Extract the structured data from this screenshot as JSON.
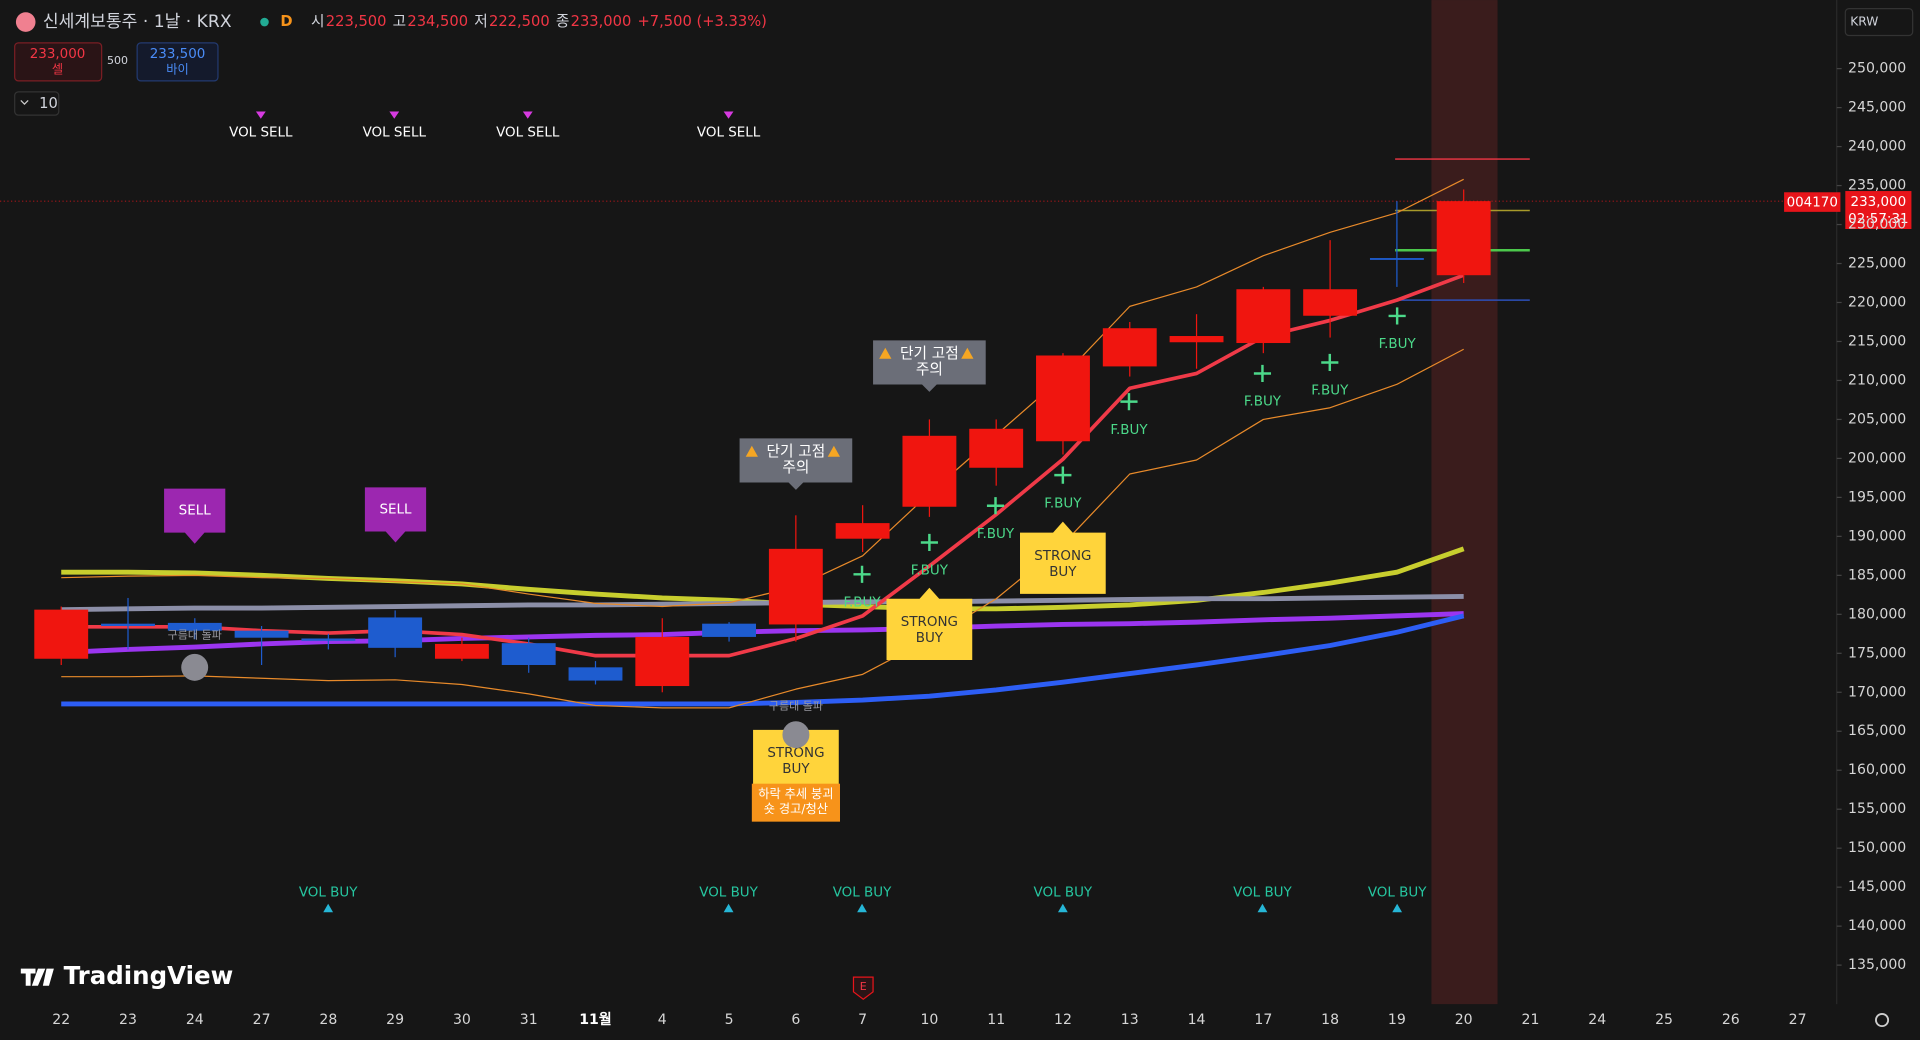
{
  "header": {
    "symbol": "신세계보통주 · 1날 · KRX",
    "interval": "D",
    "ohlc": [
      {
        "label": "시",
        "value": "223,500"
      },
      {
        "label": "고",
        "value": "234,500"
      },
      {
        "label": "저",
        "value": "222,500"
      },
      {
        "label": "종",
        "value": "233,000"
      }
    ],
    "change": "+7,500 (+3.33%)",
    "sell_price": "233,000",
    "sell_label": "셀",
    "spread": "500",
    "buy_price": "233,500",
    "buy_label": "바이",
    "indicator_count": "10",
    "currency": "KRW",
    "ticker": "004170",
    "last_price": "233,000",
    "countdown": "02:57:31",
    "brand": "TradingView",
    "event": "E"
  },
  "annotations": {
    "vol_sell": [
      "VOL SELL",
      "VOL SELL",
      "VOL SELL",
      "VOL SELL"
    ],
    "vol_buy": [
      "VOL BUY",
      "VOL BUY",
      "VOL BUY",
      "VOL BUY",
      "VOL BUY",
      "VOL BUY"
    ],
    "sell": [
      "SELL",
      "SELL"
    ],
    "warning": [
      [
        "단기 고점",
        "주의"
      ],
      [
        "단기 고점",
        "주의"
      ]
    ],
    "strong_buy": [
      [
        "STRONG",
        "BUY"
      ],
      [
        "STRONG",
        "BUY"
      ],
      [
        "STRONG",
        "BUY"
      ]
    ],
    "exit": [
      "하락 추세 붕괴",
      "숏 경고/청산"
    ],
    "f_buy": [
      "F.BUY",
      "F.BUY",
      "F.BUY",
      "F.BUY",
      "F.BUY",
      "F.BUY",
      "F.BUY",
      "F.BUY"
    ],
    "cloud": [
      "구름대 돌파",
      "구름대 돌파"
    ]
  },
  "chart_data": {
    "type": "candlestick",
    "categories": [
      "22",
      "23",
      "24",
      "27",
      "28",
      "29",
      "30",
      "31",
      "11월",
      "4",
      "5",
      "6",
      "7",
      "10",
      "11",
      "12",
      "13",
      "14",
      "17",
      "18",
      "19",
      "20",
      "21",
      "24",
      "25",
      "26",
      "27"
    ],
    "open": [
      174300,
      178800,
      178900,
      177900,
      176900,
      179600,
      174300,
      176300,
      173200,
      170800,
      178800,
      178700,
      189700,
      193800,
      198800,
      202200,
      211800,
      214900,
      214800,
      218300,
      225700,
      223500,
      null,
      null,
      null,
      null,
      null
    ],
    "high": [
      181000,
      182100,
      179500,
      178500,
      177500,
      180500,
      177000,
      177000,
      174000,
      179500,
      179000,
      192700,
      194000,
      205000,
      205000,
      213500,
      217500,
      218500,
      222000,
      228000,
      233000,
      234500,
      null,
      null,
      null,
      null,
      null
    ],
    "low": [
      173500,
      175500,
      176800,
      173500,
      175500,
      174500,
      174000,
      172500,
      171000,
      170000,
      176500,
      176500,
      188000,
      192500,
      196500,
      200500,
      210500,
      211500,
      213500,
      215500,
      222000,
      222500,
      null,
      null,
      null,
      null,
      null
    ],
    "close": [
      180600,
      178500,
      177900,
      177000,
      176600,
      175700,
      176200,
      173500,
      171500,
      177100,
      177100,
      188400,
      191700,
      202900,
      203800,
      213200,
      216700,
      215700,
      221700,
      221700,
      225500,
      233000,
      null,
      null,
      null,
      null,
      null
    ],
    "up_color": "#f0150f",
    "down_color": "#1e5ccf",
    "series": [
      {
        "color": "#c8ce2e",
        "width": 4,
        "values": [
          185400,
          185400,
          185300,
          185000,
          184600,
          184300,
          183900,
          183200,
          182600,
          182100,
          181800,
          181300,
          181000,
          180700,
          180700,
          180900,
          181200,
          181800,
          182800,
          184000,
          185400,
          188400,
          null,
          null,
          null,
          null,
          null
        ]
      },
      {
        "color": "#8c8fa8",
        "width": 4,
        "values": [
          180600,
          180700,
          180800,
          180800,
          180900,
          181000,
          181100,
          181200,
          181200,
          181300,
          181400,
          181500,
          181600,
          181600,
          181700,
          181800,
          181900,
          182000,
          182000,
          182100,
          182200,
          182300,
          null,
          null,
          null,
          null,
          null
        ]
      },
      {
        "color": "#9b35f0",
        "width": 4,
        "values": [
          175100,
          175500,
          175800,
          176200,
          176500,
          176600,
          176900,
          177100,
          177300,
          177400,
          177700,
          177900,
          178000,
          178200,
          178500,
          178700,
          178800,
          179000,
          179300,
          179500,
          179800,
          180100,
          null,
          null,
          null,
          null,
          null
        ]
      },
      {
        "color": "#2d5ef5",
        "width": 4,
        "values": [
          168500,
          168500,
          168500,
          168500,
          168500,
          168500,
          168500,
          168500,
          168500,
          168500,
          168500,
          168700,
          169000,
          169500,
          170300,
          171300,
          172400,
          173500,
          174700,
          176000,
          177700,
          179800,
          null,
          null,
          null,
          null,
          null
        ]
      },
      {
        "color": "#e88a2a",
        "width": 1,
        "values": [
          184700,
          184900,
          185000,
          184700,
          184600,
          184200,
          183900,
          182600,
          181400,
          181000,
          181500,
          183500,
          187500,
          195500,
          203000,
          210500,
          219500,
          222000,
          226000,
          229000,
          231500,
          235800,
          null,
          null,
          null,
          null,
          null
        ]
      },
      {
        "color": "#e88a2a",
        "width": 1,
        "values": [
          172000,
          172000,
          172100,
          171800,
          171500,
          171600,
          171000,
          169800,
          168300,
          168000,
          168000,
          170400,
          172300,
          176800,
          182000,
          189000,
          198000,
          199800,
          205000,
          206500,
          209500,
          214000,
          null,
          null,
          null,
          null,
          null
        ]
      },
      {
        "color": "#f03a48",
        "width": 3,
        "values": [
          178400,
          178400,
          178400,
          177900,
          177600,
          177900,
          177400,
          176200,
          174700,
          174700,
          174700,
          176900,
          179800,
          186200,
          192800,
          199900,
          209000,
          210900,
          215600,
          217700,
          220300,
          223500,
          null,
          null,
          null,
          null,
          null
        ]
      }
    ],
    "levels": [
      {
        "value": 238400,
        "color": "#f23645"
      },
      {
        "value": 231800,
        "color": "#a89a2a"
      },
      {
        "value": 226700,
        "color": "#4cc84c"
      },
      {
        "value": 220300,
        "color": "#2c4fb8"
      }
    ],
    "ylim": [
      130000,
      258800
    ],
    "yticks": [
      {
        "value": 135000,
        "label": "135,000"
      },
      {
        "value": 140000,
        "label": "140,000"
      },
      {
        "value": 145000,
        "label": "145,000"
      },
      {
        "value": 150000,
        "label": "150,000"
      },
      {
        "value": 155000,
        "label": "155,000"
      },
      {
        "value": 160000,
        "label": "160,000"
      },
      {
        "value": 165000,
        "label": "165,000"
      },
      {
        "value": 170000,
        "label": "170,000"
      },
      {
        "value": 175000,
        "label": "175,000"
      },
      {
        "value": 180000,
        "label": "180,000"
      },
      {
        "value": 185000,
        "label": "185,000"
      },
      {
        "value": 190000,
        "label": "190,000"
      },
      {
        "value": 195000,
        "label": "195,000"
      },
      {
        "value": 200000,
        "label": "200,000"
      },
      {
        "value": 205000,
        "label": "205,000"
      },
      {
        "value": 210000,
        "label": "210,000"
      },
      {
        "value": 215000,
        "label": "215,000"
      },
      {
        "value": 220000,
        "label": "220,000"
      },
      {
        "value": 225000,
        "label": "225,000"
      },
      {
        "value": 230000,
        "label": "230,000"
      },
      {
        "value": 235000,
        "label": "235,000"
      },
      {
        "value": 240000,
        "label": "240,000"
      },
      {
        "value": 245000,
        "label": "245,000"
      },
      {
        "value": 250000,
        "label": "250,000"
      }
    ]
  }
}
